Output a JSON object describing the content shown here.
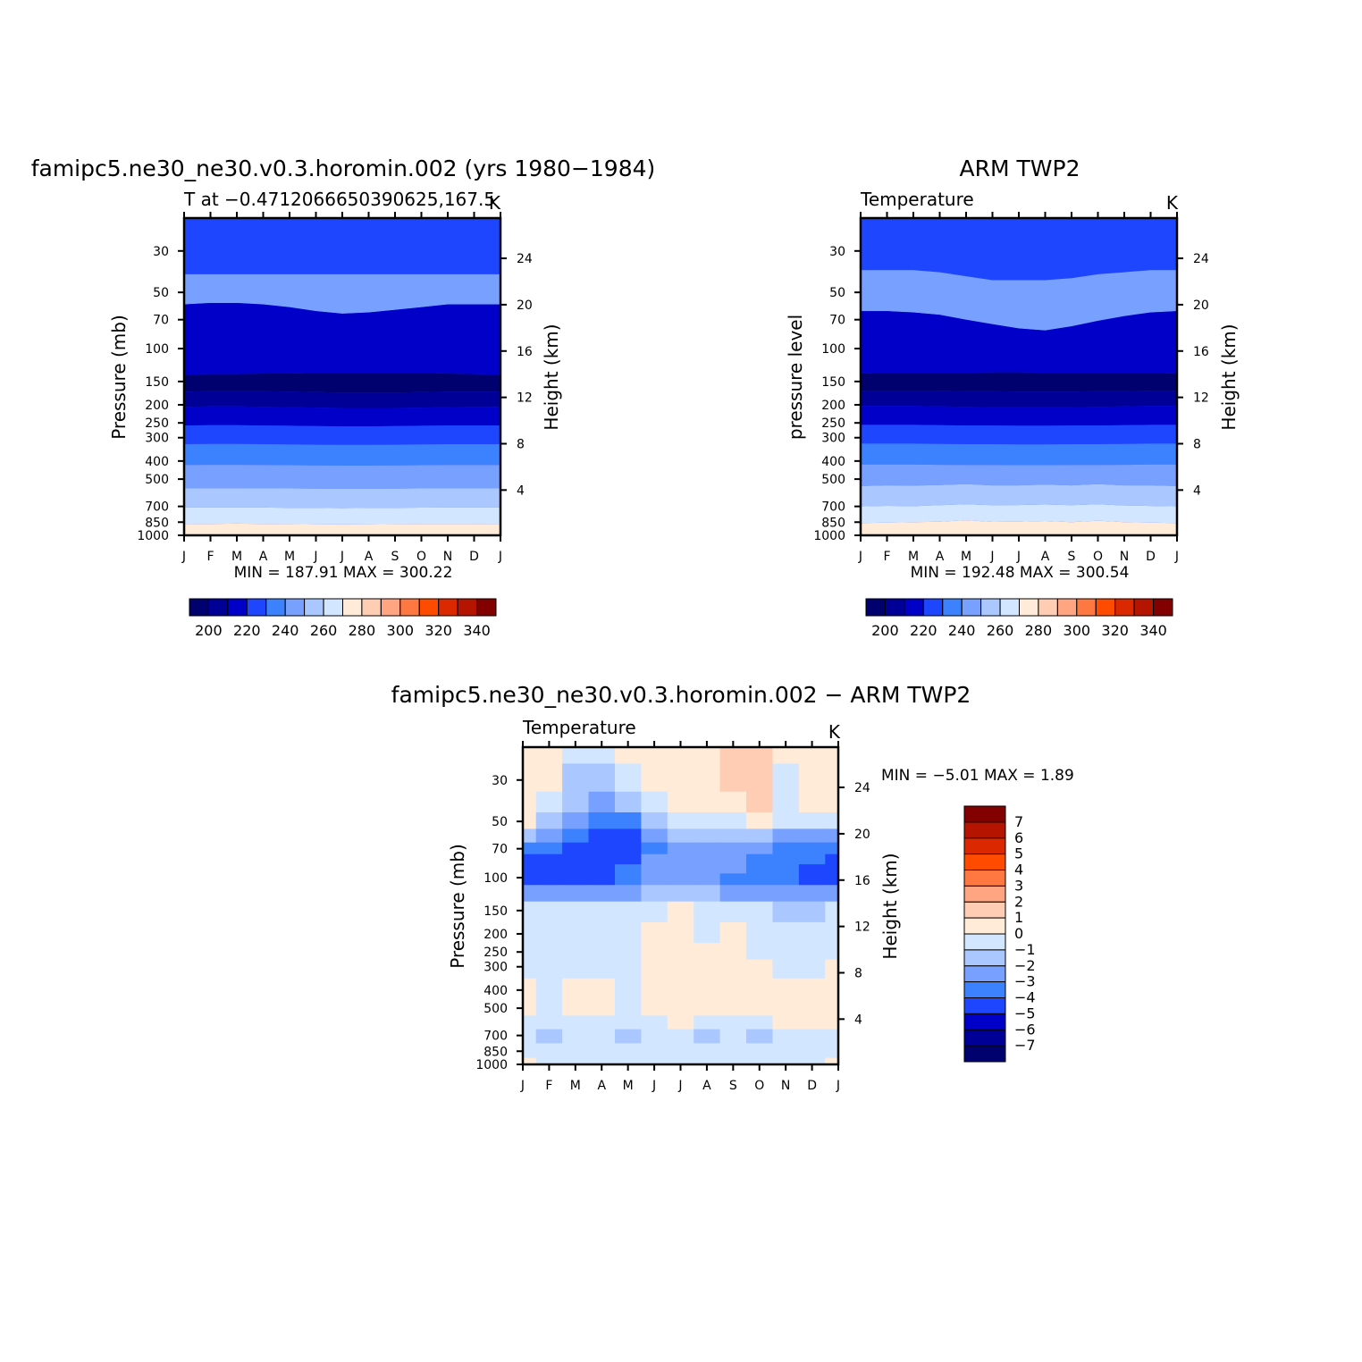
{
  "chart_data": [
    {
      "type": "contour",
      "title": "famipc5.ne30_ne30.v0.3.horomin.002 (yrs 1980−1984)",
      "left_string": "T at −0.4712066650390625,167.5",
      "right_string": "K",
      "ylabel": "Pressure (mb)",
      "y2label": "Height (km)",
      "minmax_text": "MIN = 187.91 MAX = 300.22",
      "x_ticks": [
        "J",
        "F",
        "M",
        "A",
        "M",
        "J",
        "J",
        "A",
        "S",
        "O",
        "N",
        "D",
        "J"
      ],
      "y_ticks": [
        "30",
        "50",
        "70",
        "100",
        "150",
        "200",
        "250",
        "300",
        "400",
        "500",
        "700",
        "850",
        "1000"
      ],
      "y_tick_values": [
        30,
        50,
        70,
        100,
        150,
        200,
        250,
        300,
        400,
        500,
        700,
        850,
        1000
      ],
      "y2_ticks": [
        "24",
        "20",
        "16",
        "12",
        "8",
        "4"
      ],
      "y2_tick_values": [
        24,
        20,
        16,
        12,
        8,
        4
      ],
      "ylim": [
        1000,
        20
      ],
      "min": 187.91,
      "max": 300.22,
      "contour_boundaries_pressure": {
        "x": [
          0,
          1,
          2,
          3,
          4,
          5,
          6,
          7,
          8,
          9,
          10,
          11,
          12
        ],
        "levels": [
          {
            "color_index": 5,
            "p": [
              40,
              40,
              40,
              40,
              40,
              40,
              40,
              40,
              40,
              40,
              40,
              40,
              40
            ]
          },
          {
            "color_index": 2,
            "p": [
              58,
              57,
              57,
              58,
              60,
              63,
              65,
              64,
              62,
              60,
              58,
              58,
              58
            ]
          },
          {
            "color_index": 0,
            "p": [
              138,
              137,
              137,
              136,
              136,
              135,
              135,
              135,
              135,
              135,
              136,
              137,
              138
            ]
          },
          {
            "color_index": 1,
            "p": [
              170,
              169,
              169,
              169,
              170,
              171,
              172,
              172,
              172,
              171,
              170,
              170,
              170
            ]
          },
          {
            "color_index": 2,
            "p": [
              205,
              204,
              204,
              205,
              206,
              207,
              208,
              208,
              208,
              207,
              206,
              205,
              205
            ]
          },
          {
            "color_index": 3,
            "p": [
              258,
              257,
              257,
              258,
              259,
              260,
              261,
              261,
              260,
              259,
              258,
              258,
              258
            ]
          },
          {
            "color_index": 4,
            "p": [
              325,
              324,
              324,
              325,
              326,
              327,
              328,
              328,
              327,
              326,
              325,
              325,
              325
            ]
          },
          {
            "color_index": 5,
            "p": [
              420,
              419,
              419,
              420,
              421,
              422,
              423,
              423,
              422,
              421,
              420,
              420,
              420
            ]
          },
          {
            "color_index": 6,
            "p": [
              560,
              559,
              559,
              560,
              561,
              562,
              563,
              563,
              562,
              561,
              560,
              560,
              560
            ]
          },
          {
            "color_index": 7,
            "p": [
              710,
              710,
              708,
              710,
              712,
              714,
              715,
              714,
              712,
              711,
              710,
              710,
              710
            ]
          },
          {
            "color_index": 8,
            "p": [
              870,
              868,
              866,
              868,
              870,
              872,
              874,
              872,
              870,
              869,
              868,
              868,
              870
            ]
          },
          {
            "color_index": 9,
            "p": [
              1000,
              1000,
              1000,
              1000,
              1000,
              1000,
              1000,
              1000,
              1000,
              1000,
              1000,
              1000,
              1000
            ]
          }
        ]
      }
    },
    {
      "type": "contour",
      "title": "ARM TWP2",
      "left_string": "Temperature",
      "right_string": "K",
      "ylabel": "pressure level",
      "y2label": "Height (km)",
      "minmax_text": "MIN = 192.48 MAX = 300.54",
      "x_ticks": [
        "J",
        "F",
        "M",
        "A",
        "M",
        "J",
        "J",
        "A",
        "S",
        "O",
        "N",
        "D",
        "J"
      ],
      "y_ticks": [
        "30",
        "50",
        "70",
        "100",
        "150",
        "200",
        "250",
        "300",
        "400",
        "500",
        "700",
        "850",
        "1000"
      ],
      "y_tick_values": [
        30,
        50,
        70,
        100,
        150,
        200,
        250,
        300,
        400,
        500,
        700,
        850,
        1000
      ],
      "y2_ticks": [
        "24",
        "20",
        "16",
        "12",
        "8",
        "4"
      ],
      "y2_tick_values": [
        24,
        20,
        16,
        12,
        8,
        4
      ],
      "ylim": [
        1000,
        20
      ],
      "min": 192.48,
      "max": 300.54,
      "contour_boundaries_pressure": {
        "x": [
          0,
          1,
          2,
          3,
          4,
          5,
          6,
          7,
          8,
          9,
          10,
          11,
          12
        ],
        "levels": [
          {
            "color_index": 5,
            "p": [
              38,
              38,
              38,
              39,
              41,
              43,
              43,
              43,
              42,
              40,
              39,
              38,
              38
            ]
          },
          {
            "color_index": 2,
            "p": [
              63,
              63,
              64,
              66,
              70,
              74,
              78,
              80,
              76,
              71,
              67,
              64,
              63
            ]
          },
          {
            "color_index": 0,
            "p": [
              136,
              135,
              135,
              135,
              135,
              134,
              134,
              135,
              135,
              135,
              135,
              135,
              136
            ]
          },
          {
            "color_index": 1,
            "p": [
              168,
              168,
              168,
              168,
              169,
              169,
              170,
              170,
              170,
              169,
              169,
              168,
              168
            ]
          },
          {
            "color_index": 2,
            "p": [
              203,
              203,
              203,
              204,
              205,
              206,
              206,
              206,
              206,
              205,
              204,
              203,
              203
            ]
          },
          {
            "color_index": 3,
            "p": [
              256,
              256,
              256,
              257,
              258,
              258,
              259,
              259,
              258,
              258,
              257,
              256,
              256
            ]
          },
          {
            "color_index": 4,
            "p": [
              323,
              323,
              323,
              324,
              325,
              325,
              326,
              326,
              325,
              325,
              324,
              323,
              323
            ]
          },
          {
            "color_index": 5,
            "p": [
              418,
              418,
              418,
              419,
              420,
              420,
              421,
              421,
              420,
              420,
              419,
              418,
              418
            ]
          },
          {
            "color_index": 6,
            "p": [
              545,
              540,
              542,
              538,
              532,
              540,
              540,
              535,
              540,
              532,
              540,
              540,
              545
            ]
          },
          {
            "color_index": 7,
            "p": [
              700,
              695,
              698,
              690,
              682,
              690,
              688,
              684,
              690,
              682,
              692,
              696,
              700
            ]
          },
          {
            "color_index": 8,
            "p": [
              860,
              855,
              850,
              845,
              830,
              848,
              845,
              838,
              850,
              835,
              850,
              855,
              860
            ]
          },
          {
            "color_index": 9,
            "p": [
              1000,
              1000,
              1000,
              1000,
              1000,
              1000,
              1000,
              1000,
              1000,
              1000,
              1000,
              1000,
              1000
            ]
          }
        ]
      }
    },
    {
      "type": "contour_difference",
      "title": "famipc5.ne30_ne30.v0.3.horomin.002 − ARM TWP2",
      "left_string": "Temperature",
      "right_string": "K",
      "ylabel": "Pressure (mb)",
      "y2label": "Height (km)",
      "minmax_text": "MIN = −5.01 MAX = 1.89",
      "x_ticks": [
        "J",
        "F",
        "M",
        "A",
        "M",
        "J",
        "J",
        "A",
        "S",
        "O",
        "N",
        "D",
        "J"
      ],
      "y_ticks": [
        "30",
        "50",
        "70",
        "100",
        "150",
        "200",
        "250",
        "300",
        "400",
        "500",
        "700",
        "850",
        "1000"
      ],
      "y_tick_values": [
        30,
        50,
        70,
        100,
        150,
        200,
        250,
        300,
        400,
        500,
        700,
        850,
        1000
      ],
      "y2_ticks": [
        "24",
        "20",
        "16",
        "12",
        "8",
        "4"
      ],
      "y2_tick_values": [
        24,
        20,
        16,
        12,
        8,
        4
      ],
      "ylim": [
        1000,
        20
      ],
      "min": -5.01,
      "max": 1.89,
      "diff_grid": {
        "x": [
          0,
          1,
          2,
          3,
          4,
          5,
          6,
          7,
          8,
          9,
          10,
          11,
          12
        ],
        "p": [
          20,
          30,
          40,
          50,
          60,
          70,
          80,
          90,
          100,
          120,
          150,
          200,
          250,
          300,
          400,
          500,
          600,
          700,
          850,
          1000
        ],
        "values": [
          [
            0.5,
            0.5,
            -0.5,
            -0.5,
            0.5,
            0.5,
            0.5,
            0.5,
            1.5,
            1.5,
            0.5,
            0.5,
            0.5
          ],
          [
            0.5,
            0.5,
            -1.5,
            -1.5,
            -0.5,
            0.5,
            0.5,
            0.5,
            1.5,
            1.5,
            -0.5,
            0.5,
            0.5
          ],
          [
            0.5,
            -0.5,
            -1.5,
            -2.5,
            -1.5,
            -0.5,
            0.5,
            0.5,
            0.5,
            1.5,
            -0.5,
            0.5,
            0.5
          ],
          [
            0.5,
            -1.5,
            -2.5,
            -3.5,
            -3.5,
            -1.5,
            -0.5,
            -0.5,
            -0.5,
            0.5,
            -0.5,
            -0.5,
            -0.5
          ],
          [
            -1.5,
            -2.5,
            -3.5,
            -4.5,
            -4.5,
            -2.5,
            -1.5,
            -1.5,
            -1.5,
            -1.5,
            -2.5,
            -2.5,
            -2.5
          ],
          [
            -3.5,
            -3.5,
            -4.5,
            -4.5,
            -4.5,
            -3.5,
            -2.5,
            -2.5,
            -2.5,
            -2.5,
            -3.5,
            -3.5,
            -3.5
          ],
          [
            -4.5,
            -4.5,
            -4.5,
            -4.5,
            -4.5,
            -2.5,
            -2.5,
            -2.5,
            -2.5,
            -3.5,
            -3.5,
            -3.5,
            -4.5
          ],
          [
            -4.5,
            -4.5,
            -4.5,
            -4.5,
            -3.5,
            -2.5,
            -2.5,
            -2.5,
            -2.5,
            -3.5,
            -3.5,
            -4.5,
            -4.5
          ],
          [
            -4.5,
            -4.5,
            -4.5,
            -4.5,
            -3.5,
            -2.5,
            -2.5,
            -2.5,
            -3.5,
            -3.5,
            -3.5,
            -4.5,
            -4.5
          ],
          [
            -2.5,
            -2.5,
            -2.5,
            -2.5,
            -2.5,
            -1.5,
            -1.5,
            -1.5,
            -2.5,
            -2.5,
            -2.5,
            -2.5,
            -2.5
          ],
          [
            -0.5,
            -0.5,
            -0.5,
            -0.5,
            -0.5,
            -0.5,
            0.5,
            -0.5,
            -0.5,
            -0.5,
            -1.5,
            -1.5,
            -0.5
          ],
          [
            -0.5,
            -0.5,
            -0.5,
            -0.5,
            -0.5,
            0.5,
            0.5,
            -0.5,
            0.5,
            -0.5,
            -0.5,
            -0.5,
            -0.5
          ],
          [
            -0.5,
            -0.5,
            -0.5,
            -0.5,
            -0.5,
            0.5,
            0.5,
            0.5,
            0.5,
            -0.5,
            -0.5,
            -0.5,
            -0.5
          ],
          [
            -0.5,
            -0.5,
            -0.5,
            -0.5,
            -0.5,
            0.5,
            0.5,
            0.5,
            0.5,
            0.5,
            -0.5,
            -0.5,
            0.5
          ],
          [
            0.5,
            -0.5,
            0.5,
            0.5,
            -0.5,
            0.5,
            0.5,
            0.5,
            0.5,
            0.5,
            0.5,
            0.5,
            0.5
          ],
          [
            0.5,
            -0.5,
            0.5,
            0.5,
            -0.5,
            0.5,
            0.5,
            0.5,
            0.5,
            0.5,
            0.5,
            0.5,
            0.5
          ],
          [
            -0.5,
            -0.5,
            -0.5,
            -0.5,
            -0.5,
            -0.5,
            0.5,
            -0.5,
            -0.5,
            -0.5,
            0.5,
            0.5,
            0.5
          ],
          [
            -0.5,
            -1.5,
            -0.5,
            -0.5,
            -1.5,
            -0.5,
            -0.5,
            -1.5,
            -0.5,
            -1.5,
            -0.5,
            -0.5,
            -0.5
          ],
          [
            -0.5,
            -0.5,
            -0.5,
            -0.5,
            -0.5,
            -0.5,
            -0.5,
            -0.5,
            -0.5,
            -0.5,
            -0.5,
            -0.5,
            -0.5
          ],
          [
            0.5,
            -0.5,
            -0.5,
            -0.5,
            -0.5,
            -0.5,
            -0.5,
            -0.5,
            -0.5,
            -0.5,
            -0.5,
            -0.5,
            0.5
          ]
        ]
      }
    }
  ],
  "colorbar_abs": {
    "labels": [
      "200",
      "220",
      "240",
      "260",
      "280",
      "300",
      "320",
      "340"
    ],
    "colors": [
      "#00006e",
      "#000096",
      "#0000c8",
      "#1e46ff",
      "#3c82ff",
      "#78a0ff",
      "#aac8ff",
      "#d2e6ff",
      "#ffebd7",
      "#ffcdb4",
      "#ffa582",
      "#ff7841",
      "#ff4b00",
      "#dc2800",
      "#b41400",
      "#820000"
    ]
  },
  "colorbar_diff": {
    "labels": [
      "7",
      "6",
      "5",
      "4",
      "3",
      "2",
      "1",
      "0",
      "−1",
      "−2",
      "−3",
      "−4",
      "−5",
      "−6",
      "−7"
    ],
    "colors": [
      "#820000",
      "#b41400",
      "#dc2800",
      "#ff4b00",
      "#ff7841",
      "#ffa582",
      "#ffcdb4",
      "#ffebd7",
      "#d2e6ff",
      "#aac8ff",
      "#78a0ff",
      "#3c82ff",
      "#1e46ff",
      "#0000c8",
      "#000096",
      "#00006e"
    ]
  },
  "diff_palette": {
    "-4.5": "#1e46ff",
    "-3.5": "#3c82ff",
    "-2.5": "#78a0ff",
    "-1.5": "#aac8ff",
    "-0.5": "#d2e6ff",
    "0.5": "#ffebd7",
    "1.5": "#ffcdb4"
  }
}
